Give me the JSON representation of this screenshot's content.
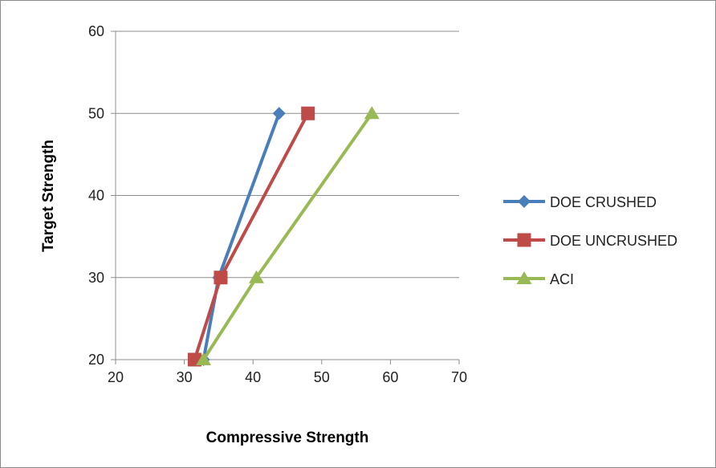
{
  "chart_data": {
    "type": "line",
    "xlabel": "Compressive Strength",
    "ylabel": "Target Strength",
    "xlim": [
      20,
      70
    ],
    "ylim": [
      20,
      60
    ],
    "xticks": [
      20,
      30,
      40,
      50,
      60,
      70
    ],
    "yticks": [
      20,
      30,
      40,
      50,
      60
    ],
    "grid": "horizontal",
    "legend_position": "right",
    "series": [
      {
        "name": "DOE CRUSHED",
        "color": "#4a7ebb",
        "marker": "diamond",
        "points": [
          [
            32.8,
            20
          ],
          [
            35.0,
            30
          ],
          [
            43.8,
            50
          ]
        ]
      },
      {
        "name": "DOE UNCRUSHED",
        "color": "#be4b48",
        "marker": "square",
        "points": [
          [
            31.5,
            20
          ],
          [
            35.3,
            30
          ],
          [
            48.0,
            50
          ]
        ]
      },
      {
        "name": "ACI",
        "color": "#98b954",
        "marker": "triangle",
        "points": [
          [
            32.8,
            20
          ],
          [
            40.5,
            30
          ],
          [
            57.3,
            50
          ]
        ]
      }
    ]
  }
}
